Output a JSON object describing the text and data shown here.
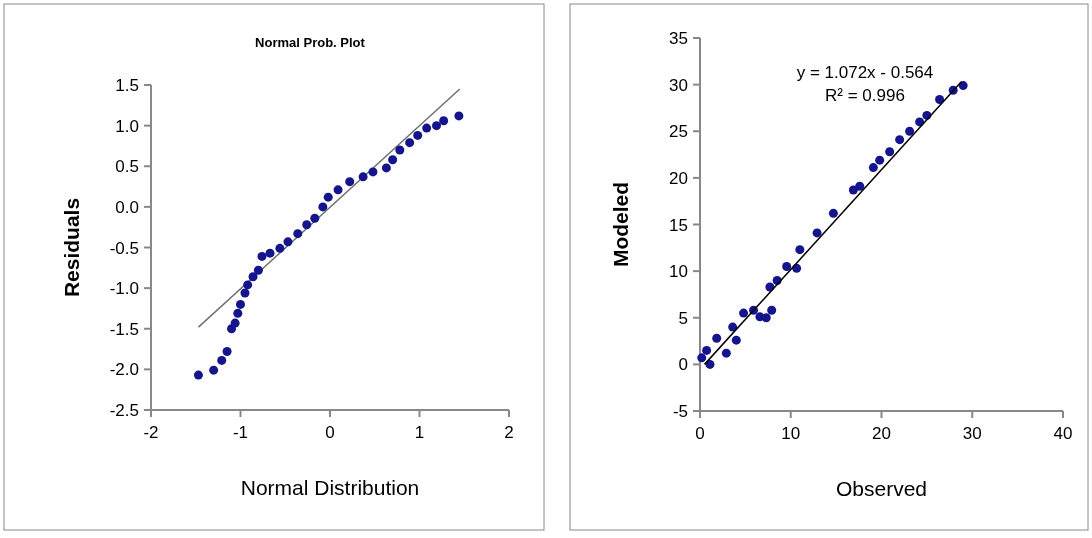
{
  "chart_data": [
    {
      "type": "scatter",
      "title": "Normal Prob. Plot",
      "xlabel": "Normal Distribution",
      "ylabel": "Residuals",
      "xlim": [
        -2,
        2
      ],
      "xticks": [
        -2,
        -1,
        0,
        1,
        2
      ],
      "ylim": [
        -2.5,
        1.5
      ],
      "yticks": [
        {
          "value": -2.5,
          "label": "-2.5"
        },
        {
          "value": -2,
          "label": "-2.0"
        },
        {
          "value": -1.5,
          "label": "-1.5"
        },
        {
          "value": -1,
          "label": "-1.0"
        },
        {
          "value": -0.5,
          "label": "-0.5"
        },
        {
          "value": 0,
          "label": "0.0"
        },
        {
          "value": 0.5,
          "label": "0.5"
        },
        {
          "value": 1,
          "label": "1.0"
        },
        {
          "value": 1.5,
          "label": "1.5"
        }
      ],
      "grid": false,
      "series": [
        {
          "type": "line",
          "color": "#707070",
          "x": [
            -1.47,
            1.45
          ],
          "values": [
            -1.48,
            1.45
          ],
          "line_style": "solid",
          "marker": "none"
        },
        {
          "marker": "circle",
          "color": "#14148c",
          "x": [
            -1.47,
            -1.3,
            -1.21,
            -1.15,
            -1.1,
            -1.06,
            -1.03,
            -1,
            -0.95,
            -0.92,
            -0.86,
            -0.8,
            -0.76,
            -0.67,
            -0.56,
            -0.47,
            -0.36,
            -0.26,
            -0.17,
            -0.08,
            -0.02,
            0.09,
            0.22,
            0.37,
            0.48,
            0.63,
            0.7,
            0.78,
            0.89,
            0.98,
            1.08,
            1.19,
            1.27,
            1.44
          ],
          "values": [
            -2.07,
            -2.01,
            -1.89,
            -1.78,
            -1.5,
            -1.43,
            -1.31,
            -1.2,
            -1.06,
            -0.96,
            -0.86,
            -0.78,
            -0.61,
            -0.57,
            -0.51,
            -0.43,
            -0.33,
            -0.22,
            -0.14,
            0,
            0.12,
            0.21,
            0.31,
            0.37,
            0.43,
            0.48,
            0.58,
            0.7,
            0.79,
            0.88,
            0.97,
            1,
            1.06,
            1.12
          ]
        }
      ]
    },
    {
      "type": "scatter",
      "xlabel": "Observed",
      "ylabel": "Modeled",
      "xlim": [
        0,
        40
      ],
      "xticks": [
        0,
        10,
        20,
        30,
        40
      ],
      "ylim": [
        -5,
        35
      ],
      "yticks": [
        -5,
        0,
        5,
        10,
        15,
        20,
        25,
        30,
        35
      ],
      "grid": false,
      "annotations": [
        "y = 1.072x - 0.564",
        "R² = 0.996"
      ],
      "series": [
        {
          "marker": "circle",
          "color": "#14148c",
          "x": [
            0.19,
            0.73,
            1.1,
            1.84,
            2.9,
            3.6,
            4,
            4.8,
            5.9,
            6.6,
            7.3,
            7.9,
            7.7,
            8.5,
            9.55,
            10.65,
            11,
            12.9,
            14.7,
            16.9,
            17.6,
            19.1,
            19.8,
            20.9,
            22,
            23.1,
            24.2,
            25,
            26.4,
            27.9,
            29
          ],
          "values": [
            0.7,
            1.5,
            0,
            2.8,
            1.2,
            4,
            2.6,
            5.5,
            5.8,
            5.1,
            5,
            5.8,
            8.3,
            9,
            10.5,
            10.3,
            12.3,
            14.1,
            16.2,
            18.7,
            19.1,
            21.1,
            21.9,
            22.8,
            24.1,
            25,
            26,
            26.7,
            28.4,
            29.4,
            29.9
          ]
        },
        {
          "type": "line",
          "color": "#000000",
          "x": [
            0.5,
            28.8
          ],
          "values": [
            0,
            30.3
          ],
          "line_style": "solid",
          "marker": "none"
        }
      ]
    }
  ]
}
